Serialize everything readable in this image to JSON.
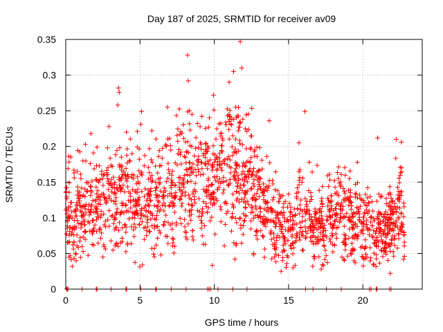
{
  "chart_data": {
    "type": "scatter",
    "title": "Day 187 of 2025, SRMTID for receiver av09",
    "xlabel": "GPS time / hours",
    "ylabel": "SRMTID / TECUs",
    "xlim": [
      0,
      24
    ],
    "ylim": [
      0,
      0.35
    ],
    "x_ticks": [
      0,
      5,
      10,
      15,
      20
    ],
    "x_tick_labels": [
      "0",
      "5",
      "10",
      "15",
      "20"
    ],
    "y_ticks": [
      0,
      0.05,
      0.1,
      0.15,
      0.2,
      0.25,
      0.3,
      0.35
    ],
    "y_tick_labels": [
      "0",
      "0.05",
      "0.1",
      "0.15",
      "0.2",
      "0.25",
      "0.3",
      "0.35"
    ],
    "grid": true,
    "marker": "+",
    "color": "#ff0000",
    "trend": [
      {
        "x": 0,
        "y": 0.1
      },
      {
        "x": 2,
        "y": 0.12
      },
      {
        "x": 4,
        "y": 0.13
      },
      {
        "x": 6,
        "y": 0.12
      },
      {
        "x": 8,
        "y": 0.15
      },
      {
        "x": 10,
        "y": 0.16
      },
      {
        "x": 11.5,
        "y": 0.17
      },
      {
        "x": 13,
        "y": 0.13
      },
      {
        "x": 14.2,
        "y": 0.1
      },
      {
        "x": 15,
        "y": 0.08
      },
      {
        "x": 16,
        "y": 0.11
      },
      {
        "x": 17,
        "y": 0.09
      },
      {
        "x": 18,
        "y": 0.11
      },
      {
        "x": 20,
        "y": 0.1
      },
      {
        "x": 21,
        "y": 0.07
      },
      {
        "x": 22,
        "y": 0.1
      },
      {
        "x": 22.8,
        "y": 0.12
      }
    ],
    "points": [
      {
        "x": 11.75,
        "y": 0.347
      },
      {
        "x": 8.2,
        "y": 0.328
      },
      {
        "x": 11.85,
        "y": 0.31
      },
      {
        "x": 11.3,
        "y": 0.305
      },
      {
        "x": 8.25,
        "y": 0.292
      },
      {
        "x": 11.0,
        "y": 0.29
      },
      {
        "x": 3.55,
        "y": 0.282
      },
      {
        "x": 3.6,
        "y": 0.276
      },
      {
        "x": 9.95,
        "y": 0.272
      },
      {
        "x": 3.5,
        "y": 0.258
      },
      {
        "x": 5.1,
        "y": 0.249
      },
      {
        "x": 16.1,
        "y": 0.249
      },
      {
        "x": 8.5,
        "y": 0.245
      },
      {
        "x": 13.7,
        "y": 0.236
      },
      {
        "x": 5.05,
        "y": 0.231
      },
      {
        "x": 2.9,
        "y": 0.228
      },
      {
        "x": 5.8,
        "y": 0.222
      },
      {
        "x": 22.25,
        "y": 0.21
      },
      {
        "x": 22.6,
        "y": 0.206
      },
      {
        "x": 21.0,
        "y": 0.212
      },
      {
        "x": 15.7,
        "y": 0.205
      },
      {
        "x": 1.7,
        "y": 0.218
      },
      {
        "x": 0.35,
        "y": 0.185
      },
      {
        "x": 14.6,
        "y": 0.04
      },
      {
        "x": 14.5,
        "y": 0.025
      },
      {
        "x": 21.85,
        "y": 0.022
      },
      {
        "x": 15.3,
        "y": 0.03
      },
      {
        "x": 17.2,
        "y": 0.028
      },
      {
        "x": 0.7,
        "y": 0.04
      },
      {
        "x": 12.65,
        "y": 0.05
      },
      {
        "x": 2.5,
        "y": 0.045
      },
      {
        "x": 22.8,
        "y": 0.046
      },
      {
        "x": 14.05,
        "y": 0.045
      }
    ],
    "zero_points_x": [
      0.05,
      0.1,
      0.15,
      1.1,
      2.05,
      2.1,
      3.05,
      4.05,
      4.1,
      5.05,
      6.05,
      6.1,
      7.1,
      8.1,
      9.55,
      9.65,
      9.75,
      10.25,
      11.25,
      12.2,
      16.15,
      16.65,
      17.55,
      18.55,
      20.45,
      20.55,
      20.9,
      20.95,
      21.8,
      21.9
    ]
  }
}
